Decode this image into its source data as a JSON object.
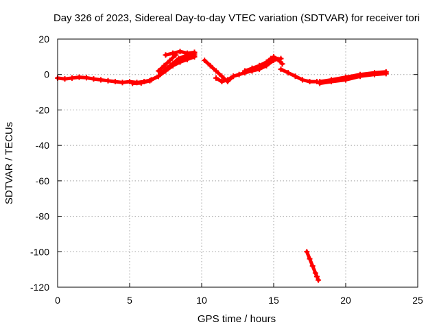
{
  "chart_data": {
    "type": "scatter",
    "title": "Day 326 of 2023, Sidereal Day-to-day VTEC variation (SDTVAR) for receiver tori",
    "xlabel": "GPS time / hours",
    "ylabel": "SDTVAR / TECUs",
    "xlim": [
      0,
      25
    ],
    "ylim": [
      -120,
      20
    ],
    "xticks": [
      "0",
      "5",
      "10",
      "15",
      "20",
      "25"
    ],
    "yticks": [
      "20",
      "0",
      "-20",
      "-40",
      "-60",
      "-80",
      "-100",
      "-120"
    ],
    "grid": true,
    "marker_color": "#ff0000",
    "series": [
      {
        "x": [
          0.0,
          0.5,
          1.0,
          1.5,
          2.0,
          2.5,
          3.0,
          3.5,
          4.0,
          4.5,
          5.0,
          5.5,
          6.0,
          6.5,
          7.0
        ],
        "y": [
          -2.0,
          -2.5,
          -2.0,
          -1.5,
          -1.8,
          -2.5,
          -3.0,
          -3.5,
          -4.0,
          -4.5,
          -4.0,
          -4.5,
          -4.0,
          -3.0,
          -1.0
        ]
      },
      {
        "x": [
          5.2,
          5.8,
          6.4,
          7.0,
          7.5,
          8.0,
          8.5,
          9.0,
          9.5
        ],
        "y": [
          -5.0,
          -4.8,
          -3.5,
          -1.0,
          2.0,
          5.0,
          7.0,
          8.5,
          10.0
        ]
      },
      {
        "x": [
          6.5,
          7.0,
          7.5,
          8.0,
          8.5,
          9.0,
          9.5
        ],
        "y": [
          -3.0,
          -1.0,
          3.0,
          6.0,
          8.5,
          10.0,
          11.0
        ]
      },
      {
        "x": [
          7.2,
          7.8,
          8.4,
          9.0,
          9.5
        ],
        "y": [
          1.0,
          5.0,
          9.0,
          11.0,
          12.0
        ]
      },
      {
        "x": [
          7.5,
          8.0,
          8.5,
          9.0,
          9.5
        ],
        "y": [
          11.0,
          12.0,
          13.0,
          12.0,
          12.5
        ]
      },
      {
        "x": [
          7.0,
          7.4,
          7.8,
          8.2
        ],
        "y": [
          2.0,
          5.0,
          8.0,
          11.0
        ]
      },
      {
        "x": [
          10.2,
          10.6,
          11.0,
          11.4,
          11.8,
          12.2
        ],
        "y": [
          8.0,
          5.0,
          2.0,
          -1.0,
          -4.0,
          -1.0
        ]
      },
      {
        "x": [
          11.0,
          11.4,
          11.8,
          12.2,
          12.6,
          13.0,
          13.5,
          14.0,
          14.5,
          15.0,
          15.5
        ],
        "y": [
          -2.0,
          -4.0,
          -3.0,
          -1.0,
          0.0,
          1.0,
          2.0,
          3.0,
          5.0,
          8.0,
          9.0
        ]
      },
      {
        "x": [
          13.0,
          13.5,
          14.0,
          14.5,
          14.8,
          15.0,
          15.3,
          15.6
        ],
        "y": [
          2.0,
          3.5,
          5.0,
          7.0,
          9.0,
          10.0,
          8.5,
          6.0
        ]
      },
      {
        "x": [
          15.5,
          16.0,
          16.5,
          17.0,
          17.5,
          18.0
        ],
        "y": [
          3.0,
          1.0,
          -1.0,
          -3.0,
          -4.0,
          -4.0
        ]
      },
      {
        "x": [
          17.3,
          17.5,
          17.7,
          17.9,
          18.0,
          18.1
        ],
        "y": [
          -100.0,
          -104.0,
          -108.0,
          -112.0,
          -114.0,
          -116.0
        ]
      },
      {
        "x": [
          18.2,
          19.0,
          20.0,
          21.0,
          22.0,
          22.8
        ],
        "y": [
          -4.0,
          -3.0,
          -1.5,
          0.0,
          1.0,
          1.5
        ]
      },
      {
        "x": [
          18.2,
          19.0,
          20.0,
          21.0,
          22.0,
          22.8
        ],
        "y": [
          -5.0,
          -4.0,
          -3.0,
          -1.0,
          0.0,
          0.5
        ]
      }
    ]
  }
}
